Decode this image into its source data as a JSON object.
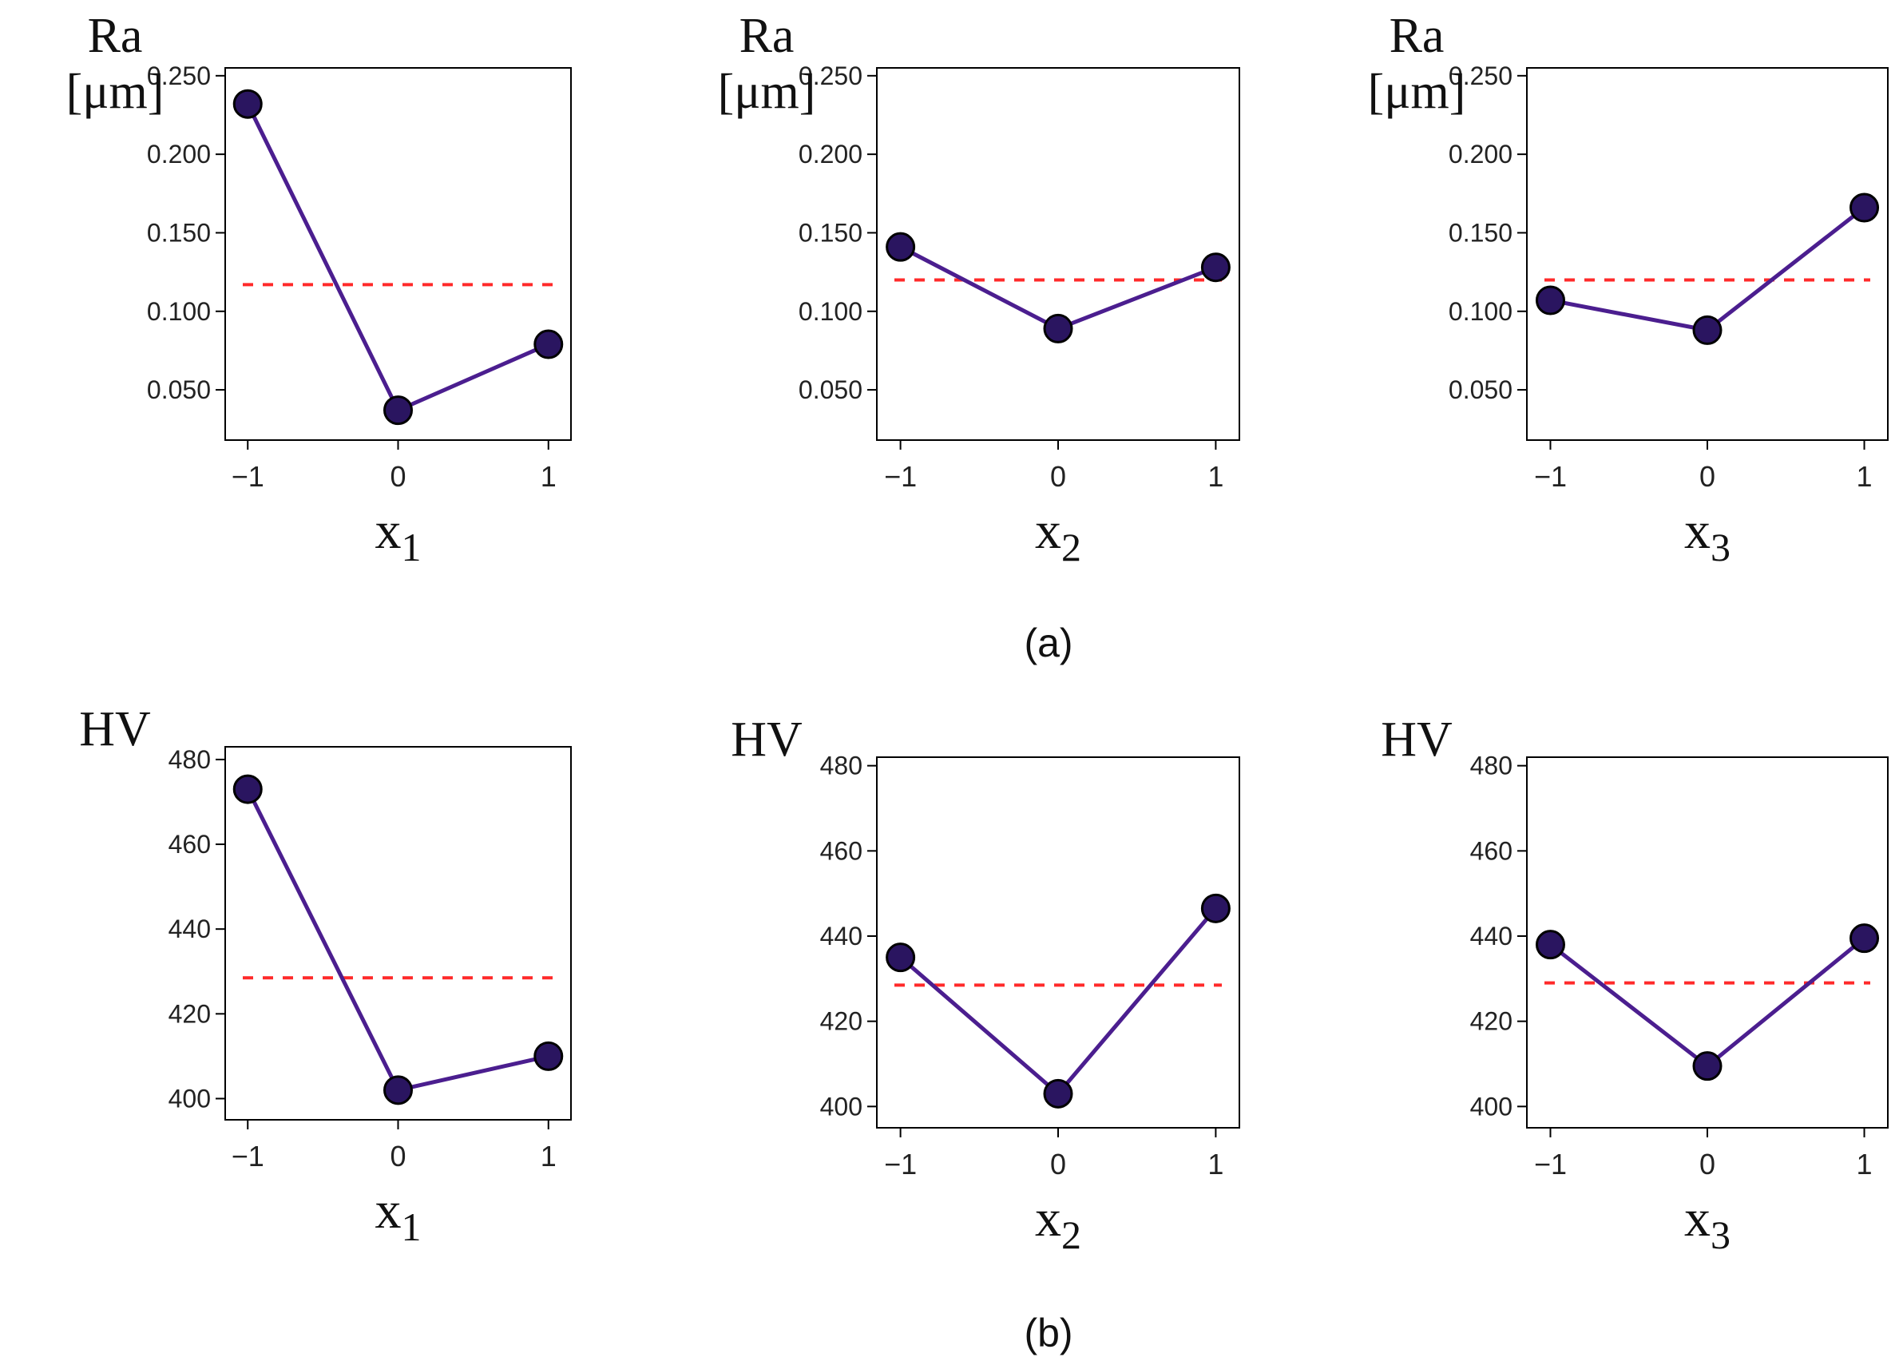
{
  "figure": {
    "row_labels": [
      "(a)",
      "(b)"
    ]
  },
  "colors": {
    "line": "#4b1e8f",
    "marker_fill": "#2a1560",
    "marker_stroke": "#000000",
    "mean_line": "#ff2a2a",
    "axis": "#000000",
    "tick_text": "#222222"
  },
  "chart_data": [
    {
      "type": "line",
      "row": 0,
      "col": 0,
      "ylabel": [
        "Ra",
        "[μm]"
      ],
      "xlabel": "x",
      "xlabel_sub": "1",
      "x": [
        -1,
        0,
        1
      ],
      "values": [
        0.232,
        0.037,
        0.079
      ],
      "mean": 0.117,
      "xlim": [
        -1.15,
        1.15
      ],
      "ylim": [
        0.018,
        0.255
      ],
      "yticks": [
        0.05,
        0.1,
        0.15,
        0.2,
        0.25
      ],
      "ytick_labels": [
        "0.050",
        "0.100",
        "0.150",
        "0.200",
        "0.250"
      ],
      "xticks": [
        -1,
        0,
        1
      ],
      "xtick_labels": [
        "−1",
        "0",
        "1"
      ],
      "grid": false
    },
    {
      "type": "line",
      "row": 0,
      "col": 1,
      "ylabel": [
        "Ra",
        "[μm]"
      ],
      "xlabel": "x",
      "xlabel_sub": "2",
      "x": [
        -1,
        0,
        1
      ],
      "values": [
        0.141,
        0.089,
        0.128
      ],
      "mean": 0.12,
      "xlim": [
        -1.15,
        1.15
      ],
      "ylim": [
        0.018,
        0.255
      ],
      "yticks": [
        0.05,
        0.1,
        0.15,
        0.2,
        0.25
      ],
      "ytick_labels": [
        "0.050",
        "0.100",
        "0.150",
        "0.200",
        "0.250"
      ],
      "xticks": [
        -1,
        0,
        1
      ],
      "xtick_labels": [
        "−1",
        "0",
        "1"
      ],
      "grid": false
    },
    {
      "type": "line",
      "row": 0,
      "col": 2,
      "ylabel": [
        "Ra",
        "[μm]"
      ],
      "xlabel": "x",
      "xlabel_sub": "3",
      "x": [
        -1,
        0,
        1
      ],
      "values": [
        0.107,
        0.088,
        0.166
      ],
      "mean": 0.12,
      "xlim": [
        -1.15,
        1.15
      ],
      "ylim": [
        0.018,
        0.255
      ],
      "yticks": [
        0.05,
        0.1,
        0.15,
        0.2,
        0.25
      ],
      "ytick_labels": [
        "0.050",
        "0.100",
        "0.150",
        "0.200",
        "0.250"
      ],
      "xticks": [
        -1,
        0,
        1
      ],
      "xtick_labels": [
        "−1",
        "0",
        "1"
      ],
      "grid": false
    },
    {
      "type": "line",
      "row": 1,
      "col": 0,
      "ylabel": [
        "HV"
      ],
      "xlabel": "x",
      "xlabel_sub": "1",
      "x": [
        -1,
        0,
        1
      ],
      "values": [
        473,
        402,
        410
      ],
      "mean": 428.5,
      "xlim": [
        -1.15,
        1.15
      ],
      "ylim": [
        395,
        483
      ],
      "yticks": [
        400,
        420,
        440,
        460,
        480
      ],
      "ytick_labels": [
        "400",
        "420",
        "440",
        "460",
        "480"
      ],
      "xticks": [
        -1,
        0,
        1
      ],
      "xtick_labels": [
        "−1",
        "0",
        "1"
      ],
      "grid": false
    },
    {
      "type": "line",
      "row": 1,
      "col": 1,
      "ylabel": [
        "HV"
      ],
      "xlabel": "x",
      "xlabel_sub": "2",
      "x": [
        -1,
        0,
        1
      ],
      "values": [
        435,
        403,
        446.5
      ],
      "mean": 428.5,
      "xlim": [
        -1.15,
        1.15
      ],
      "ylim": [
        395,
        482
      ],
      "yticks": [
        400,
        420,
        440,
        460,
        480
      ],
      "ytick_labels": [
        "400",
        "420",
        "440",
        "460",
        "480"
      ],
      "xticks": [
        -1,
        0,
        1
      ],
      "xtick_labels": [
        "−1",
        "0",
        "1"
      ],
      "grid": false
    },
    {
      "type": "line",
      "row": 1,
      "col": 2,
      "ylabel": [
        "HV"
      ],
      "xlabel": "x",
      "xlabel_sub": "3",
      "x": [
        -1,
        0,
        1
      ],
      "values": [
        438,
        409.5,
        439.5
      ],
      "mean": 429,
      "xlim": [
        -1.15,
        1.15
      ],
      "ylim": [
        395,
        482
      ],
      "yticks": [
        400,
        420,
        440,
        460,
        480
      ],
      "ytick_labels": [
        "400",
        "420",
        "440",
        "460",
        "480"
      ],
      "xticks": [
        -1,
        0,
        1
      ],
      "xtick_labels": [
        "−1",
        "0",
        "1"
      ],
      "grid": false
    }
  ]
}
